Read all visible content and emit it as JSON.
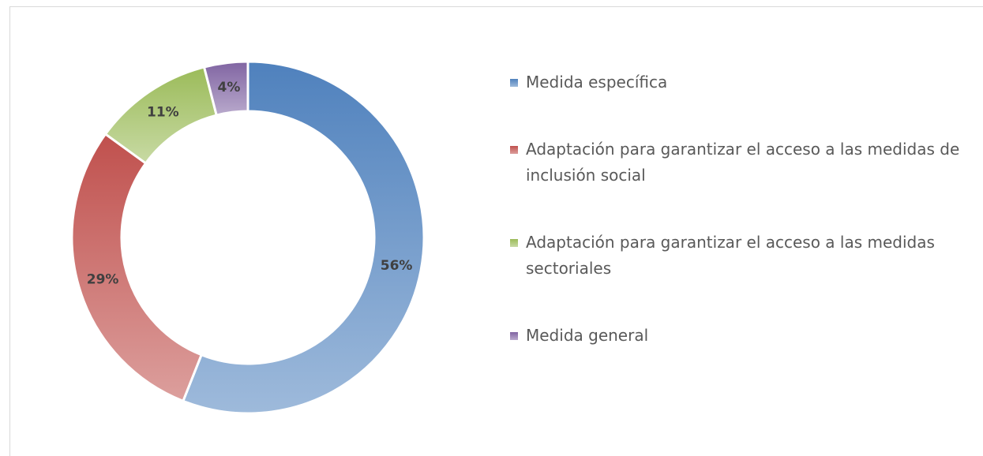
{
  "chart_data": {
    "type": "donut",
    "categories": [
      "Medida específica",
      "Adaptación para garantizar el acceso a las medidas de inclusión social",
      "Adaptación para garantizar el acceso a las medidas sectoriales",
      "Medida general"
    ],
    "values": [
      56,
      29,
      11,
      4
    ],
    "value_labels": [
      "56%",
      "29%",
      "11%",
      "4%"
    ],
    "colors": [
      "#4f81bd",
      "#c0504d",
      "#9bbb59",
      "#8064a2"
    ]
  }
}
